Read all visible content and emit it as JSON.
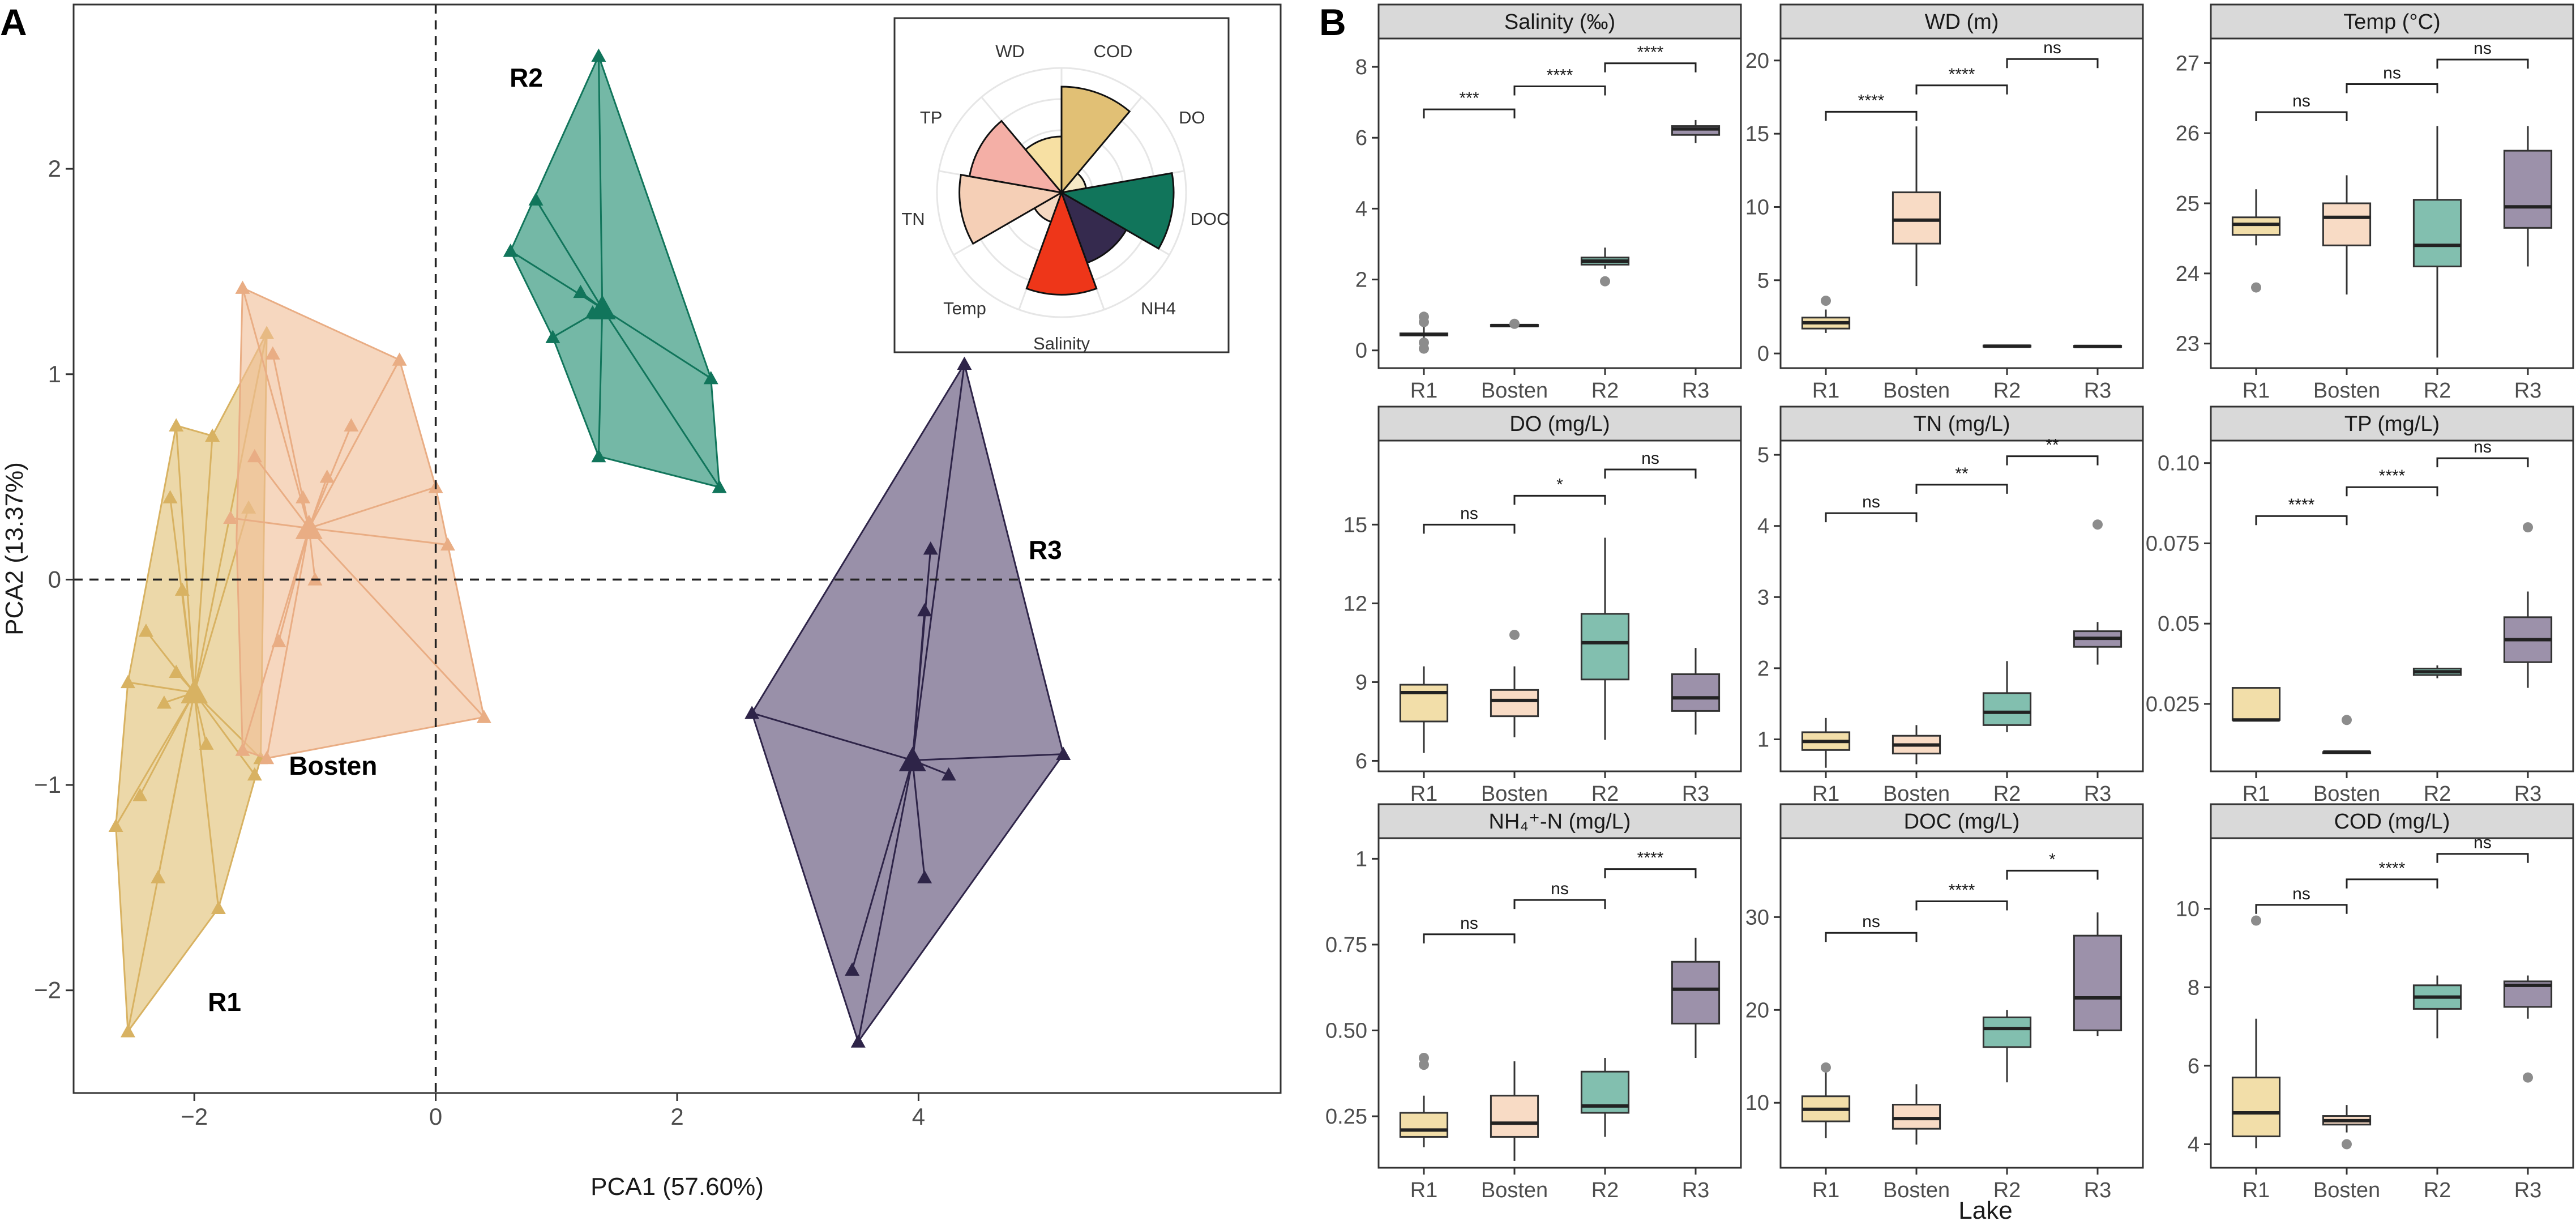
{
  "panel_labels": {
    "a": "A",
    "b": "B"
  },
  "pca": {
    "xlabel": "PCA1 (57.60%)",
    "ylabel": "PCA2 (13.37%)",
    "xlim": [
      -3.0,
      7.0
    ],
    "ylim": [
      -2.5,
      2.8
    ],
    "xticks": [
      -2,
      0,
      2,
      4
    ],
    "yticks": [
      -2,
      -1,
      0,
      1,
      2
    ],
    "groups": [
      {
        "name": "R1",
        "color": "#E1C075",
        "stroke": "#D8B262",
        "label_pos": [
          -1.75,
          -2.1
        ],
        "centroid": [
          -2.0,
          -0.55
        ],
        "points": [
          [
            -2.55,
            -2.2
          ],
          [
            -2.65,
            -1.2
          ],
          [
            -2.55,
            -0.5
          ],
          [
            -2.4,
            -0.25
          ],
          [
            -2.15,
            -0.45
          ],
          [
            -2.3,
            -1.45
          ],
          [
            -2.45,
            -1.05
          ],
          [
            -1.8,
            -1.6
          ],
          [
            -1.9,
            -0.8
          ],
          [
            -1.5,
            -0.95
          ],
          [
            -1.45,
            -0.87
          ],
          [
            -2.1,
            -0.05
          ],
          [
            -2.2,
            0.4
          ],
          [
            -2.15,
            0.75
          ],
          [
            -1.85,
            0.7
          ],
          [
            -1.55,
            0.35
          ],
          [
            -1.4,
            1.2
          ],
          [
            -2.25,
            -0.6
          ]
        ],
        "hull": [
          [
            -2.55,
            -2.2
          ],
          [
            -2.65,
            -1.2
          ],
          [
            -2.55,
            -0.5
          ],
          [
            -2.15,
            0.75
          ],
          [
            -1.85,
            0.7
          ],
          [
            -1.4,
            1.2
          ],
          [
            -1.45,
            -0.87
          ],
          [
            -1.8,
            -1.6
          ]
        ]
      },
      {
        "name": "Bosten",
        "color": "#F0BE98",
        "stroke": "#E9AD84",
        "label_pos": [
          -0.85,
          -0.95
        ],
        "centroid": [
          -1.05,
          0.25
        ],
        "points": [
          [
            -1.6,
            1.42
          ],
          [
            -1.35,
            1.1
          ],
          [
            -0.3,
            1.07
          ],
          [
            0.0,
            0.45
          ],
          [
            0.1,
            0.17
          ],
          [
            0.4,
            -0.67
          ],
          [
            -1.4,
            -0.87
          ],
          [
            -1.6,
            -0.83
          ],
          [
            -1.5,
            0.6
          ],
          [
            -0.7,
            0.75
          ],
          [
            -1.1,
            0.4
          ],
          [
            -1.0,
            0.0
          ],
          [
            -1.3,
            -0.3
          ],
          [
            -1.7,
            0.3
          ],
          [
            -0.9,
            0.5
          ]
        ],
        "hull": [
          [
            -1.6,
            1.42
          ],
          [
            -0.3,
            1.07
          ],
          [
            0.0,
            0.45
          ],
          [
            0.1,
            0.17
          ],
          [
            0.4,
            -0.67
          ],
          [
            -1.4,
            -0.87
          ],
          [
            -1.6,
            -0.83
          ],
          [
            -1.65,
            0.2
          ]
        ]
      },
      {
        "name": "R2",
        "color": "#1E8C6F",
        "stroke": "#11755B",
        "label_pos": [
          0.75,
          2.4
        ],
        "centroid": [
          1.38,
          1.32
        ],
        "points": [
          [
            1.35,
            2.55
          ],
          [
            0.83,
            1.85
          ],
          [
            0.62,
            1.6
          ],
          [
            0.97,
            1.18
          ],
          [
            1.35,
            0.6
          ],
          [
            2.28,
            0.98
          ],
          [
            2.35,
            0.45
          ],
          [
            1.3,
            1.3
          ],
          [
            1.2,
            1.4
          ]
        ],
        "hull": [
          [
            1.35,
            2.55
          ],
          [
            0.62,
            1.6
          ],
          [
            0.97,
            1.18
          ],
          [
            1.35,
            0.6
          ],
          [
            2.35,
            0.45
          ],
          [
            2.28,
            0.98
          ]
        ]
      },
      {
        "name": "R3",
        "color": "#5A4C74",
        "stroke": "#2E2448",
        "label_pos": [
          5.05,
          0.1
        ],
        "centroid": [
          3.95,
          -0.88
        ],
        "points": [
          [
            4.38,
            1.05
          ],
          [
            4.1,
            0.15
          ],
          [
            4.05,
            -0.15
          ],
          [
            2.62,
            -0.65
          ],
          [
            5.2,
            -0.85
          ],
          [
            4.25,
            -0.95
          ],
          [
            4.05,
            -1.45
          ],
          [
            3.45,
            -1.9
          ],
          [
            3.5,
            -2.25
          ]
        ],
        "hull": [
          [
            4.38,
            1.05
          ],
          [
            5.2,
            -0.85
          ],
          [
            3.5,
            -2.25
          ],
          [
            2.62,
            -0.65
          ]
        ]
      }
    ],
    "inset_rose": {
      "type": "rose",
      "variables": [
        "COD",
        "DO",
        "DOC",
        "NH4",
        "Salinity",
        "Temp",
        "TN",
        "TP",
        "WD"
      ],
      "values": [
        0.85,
        0.2,
        0.9,
        0.6,
        0.82,
        0.25,
        0.82,
        0.75,
        0.45
      ],
      "colors": [
        "#E1C075",
        "#F5E9C6",
        "#11755B",
        "#352A4E",
        "#EE3619",
        "#F5D9C2",
        "#F5CFB6",
        "#F4AFA6",
        "#F7E0A3"
      ]
    }
  },
  "boxplots": {
    "xlabel": "Lake",
    "categories": [
      "R1",
      "Bosten",
      "R2",
      "R3"
    ],
    "fills": [
      "#F2DEA9",
      "#F8DBC5",
      "#82BFAF",
      "#9C91AA"
    ],
    "panels": [
      {
        "title": "Salinity (‰)",
        "ylim": [
          -0.5,
          8.8
        ],
        "yticks": [
          0,
          2,
          4,
          6,
          8
        ],
        "boxes": [
          [
            0.1,
            0.42,
            0.45,
            0.48,
            1.0
          ],
          [
            0.62,
            0.68,
            0.7,
            0.72,
            0.78
          ],
          [
            2.3,
            2.42,
            2.52,
            2.62,
            2.9
          ],
          [
            5.85,
            6.08,
            6.25,
            6.33,
            6.5
          ]
        ],
        "outliers": [
          [
            0,
            0.8
          ],
          [
            0,
            0.95
          ],
          [
            0,
            0.22
          ],
          [
            0,
            0.05
          ],
          [
            1,
            0.75
          ],
          [
            2,
            1.95
          ]
        ],
        "sig": [
          {
            "a": 0,
            "b": 1,
            "y": 6.8,
            "t": "***"
          },
          {
            "a": 1,
            "b": 2,
            "y": 7.45,
            "t": "****"
          },
          {
            "a": 2,
            "b": 3,
            "y": 8.1,
            "t": "****"
          }
        ]
      },
      {
        "title": "WD (m)",
        "ylim": [
          -1,
          21.5
        ],
        "yticks": [
          0,
          5,
          10,
          15,
          20
        ],
        "boxes": [
          [
            1.4,
            1.7,
            2.1,
            2.45,
            3.0
          ],
          [
            4.6,
            7.5,
            9.1,
            11.0,
            15.5
          ],
          [
            0.42,
            0.46,
            0.5,
            0.54,
            0.58
          ],
          [
            0.4,
            0.45,
            0.48,
            0.52,
            0.56
          ]
        ],
        "outliers": [
          [
            0,
            3.6
          ]
        ],
        "sig": [
          {
            "a": 0,
            "b": 1,
            "y": 16.5,
            "t": "****"
          },
          {
            "a": 1,
            "b": 2,
            "y": 18.3,
            "t": "****"
          },
          {
            "a": 2,
            "b": 3,
            "y": 20.1,
            "t": "ns"
          }
        ]
      },
      {
        "title": "Temp (°C)",
        "ylim": [
          22.65,
          27.35
        ],
        "yticks": [
          23,
          24,
          25,
          26,
          27
        ],
        "boxes": [
          [
            24.4,
            24.55,
            24.7,
            24.8,
            25.2
          ],
          [
            23.7,
            24.4,
            24.8,
            25.0,
            25.4
          ],
          [
            22.8,
            24.1,
            24.4,
            25.05,
            26.1
          ],
          [
            24.1,
            24.65,
            24.95,
            25.75,
            26.1
          ]
        ],
        "outliers": [
          [
            0,
            23.8
          ]
        ],
        "sig": [
          {
            "a": 0,
            "b": 1,
            "y": 26.3,
            "t": "ns"
          },
          {
            "a": 1,
            "b": 2,
            "y": 26.7,
            "t": "ns"
          },
          {
            "a": 2,
            "b": 3,
            "y": 27.05,
            "t": "ns"
          }
        ]
      },
      {
        "title": "DO (mg/L)",
        "ylim": [
          5.6,
          18.2
        ],
        "yticks": [
          6,
          9,
          12,
          15
        ],
        "boxes": [
          [
            6.3,
            7.5,
            8.6,
            8.9,
            9.6
          ],
          [
            6.9,
            7.7,
            8.3,
            8.7,
            9.6
          ],
          [
            6.8,
            9.1,
            10.5,
            11.6,
            14.5
          ],
          [
            7.0,
            7.9,
            8.4,
            9.3,
            10.3
          ]
        ],
        "outliers": [
          [
            1,
            10.8
          ]
        ],
        "sig": [
          {
            "a": 0,
            "b": 1,
            "y": 15.0,
            "t": "ns"
          },
          {
            "a": 1,
            "b": 2,
            "y": 16.1,
            "t": "*"
          },
          {
            "a": 2,
            "b": 3,
            "y": 17.1,
            "t": "ns"
          }
        ]
      },
      {
        "title": "TN (mg/L)",
        "ylim": [
          0.55,
          5.2
        ],
        "yticks": [
          1,
          2,
          3,
          4,
          5
        ],
        "boxes": [
          [
            0.6,
            0.85,
            0.97,
            1.1,
            1.3
          ],
          [
            0.65,
            0.8,
            0.92,
            1.05,
            1.2
          ],
          [
            1.1,
            1.2,
            1.38,
            1.65,
            2.1
          ],
          [
            2.05,
            2.3,
            2.42,
            2.52,
            2.65
          ]
        ],
        "outliers": [
          [
            3,
            4.02
          ]
        ],
        "sig": [
          {
            "a": 0,
            "b": 1,
            "y": 4.18,
            "t": "ns"
          },
          {
            "a": 1,
            "b": 2,
            "y": 4.58,
            "t": "**"
          },
          {
            "a": 2,
            "b": 3,
            "y": 4.98,
            "t": "**"
          }
        ]
      },
      {
        "title": "TP (mg/L)",
        "ylim": [
          0.004,
          0.107
        ],
        "yticks": [
          0.025,
          0.05,
          0.075,
          0.1
        ],
        "boxes": [
          [
            0.02,
            0.02,
            0.02,
            0.03,
            0.03
          ],
          [
            0.01,
            0.01,
            0.01,
            0.01,
            0.01
          ],
          [
            0.033,
            0.034,
            0.035,
            0.036,
            0.037
          ],
          [
            0.03,
            0.038,
            0.045,
            0.052,
            0.06
          ]
        ],
        "outliers": [
          [
            1,
            0.02
          ],
          [
            3,
            0.08
          ]
        ],
        "sig": [
          {
            "a": 0,
            "b": 1,
            "y": 0.0835,
            "t": "****"
          },
          {
            "a": 1,
            "b": 2,
            "y": 0.0925,
            "t": "****"
          },
          {
            "a": 2,
            "b": 3,
            "y": 0.1015,
            "t": "ns"
          }
        ]
      },
      {
        "title": "NH₄⁺-N (mg/L)",
        "ylim": [
          0.1,
          1.06
        ],
        "yticks": [
          0.25,
          0.5,
          0.75,
          1.0
        ],
        "boxes": [
          [
            0.16,
            0.19,
            0.21,
            0.26,
            0.31
          ],
          [
            0.12,
            0.19,
            0.23,
            0.31,
            0.41
          ],
          [
            0.19,
            0.26,
            0.28,
            0.38,
            0.42
          ],
          [
            0.42,
            0.52,
            0.62,
            0.7,
            0.77
          ]
        ],
        "outliers": [
          [
            0,
            0.4
          ],
          [
            0,
            0.42
          ]
        ],
        "sig": [
          {
            "a": 0,
            "b": 1,
            "y": 0.78,
            "t": "ns"
          },
          {
            "a": 1,
            "b": 2,
            "y": 0.88,
            "t": "ns"
          },
          {
            "a": 2,
            "b": 3,
            "y": 0.97,
            "t": "****"
          }
        ]
      },
      {
        "title": "DOC (mg/L)",
        "ylim": [
          3.0,
          38.5
        ],
        "yticks": [
          10,
          20,
          30
        ],
        "boxes": [
          [
            6.2,
            8.0,
            9.3,
            10.7,
            13.5
          ],
          [
            5.5,
            7.2,
            8.3,
            9.8,
            12.0
          ],
          [
            12.2,
            16.0,
            18.0,
            19.2,
            20.0
          ],
          [
            17.2,
            17.8,
            21.3,
            28.0,
            30.5
          ]
        ],
        "outliers": [
          [
            0,
            13.8
          ]
        ],
        "sig": [
          {
            "a": 0,
            "b": 1,
            "y": 28.3,
            "t": "ns"
          },
          {
            "a": 1,
            "b": 2,
            "y": 31.7,
            "t": "****"
          },
          {
            "a": 2,
            "b": 3,
            "y": 35.0,
            "t": "*"
          }
        ]
      },
      {
        "title": "COD (mg/L)",
        "ylim": [
          3.4,
          11.8
        ],
        "yticks": [
          4,
          6,
          8,
          10
        ],
        "boxes": [
          [
            3.9,
            4.2,
            4.8,
            5.7,
            7.2
          ],
          [
            4.3,
            4.5,
            4.6,
            4.72,
            5.0
          ],
          [
            6.7,
            7.45,
            7.75,
            8.05,
            8.3
          ],
          [
            7.2,
            7.5,
            8.05,
            8.15,
            8.3
          ]
        ],
        "outliers": [
          [
            0,
            9.7
          ],
          [
            1,
            4.0
          ],
          [
            3,
            5.7
          ]
        ],
        "sig": [
          {
            "a": 0,
            "b": 1,
            "y": 10.1,
            "t": "ns"
          },
          {
            "a": 1,
            "b": 2,
            "y": 10.75,
            "t": "****"
          },
          {
            "a": 2,
            "b": 3,
            "y": 11.4,
            "t": "ns"
          }
        ]
      }
    ]
  }
}
